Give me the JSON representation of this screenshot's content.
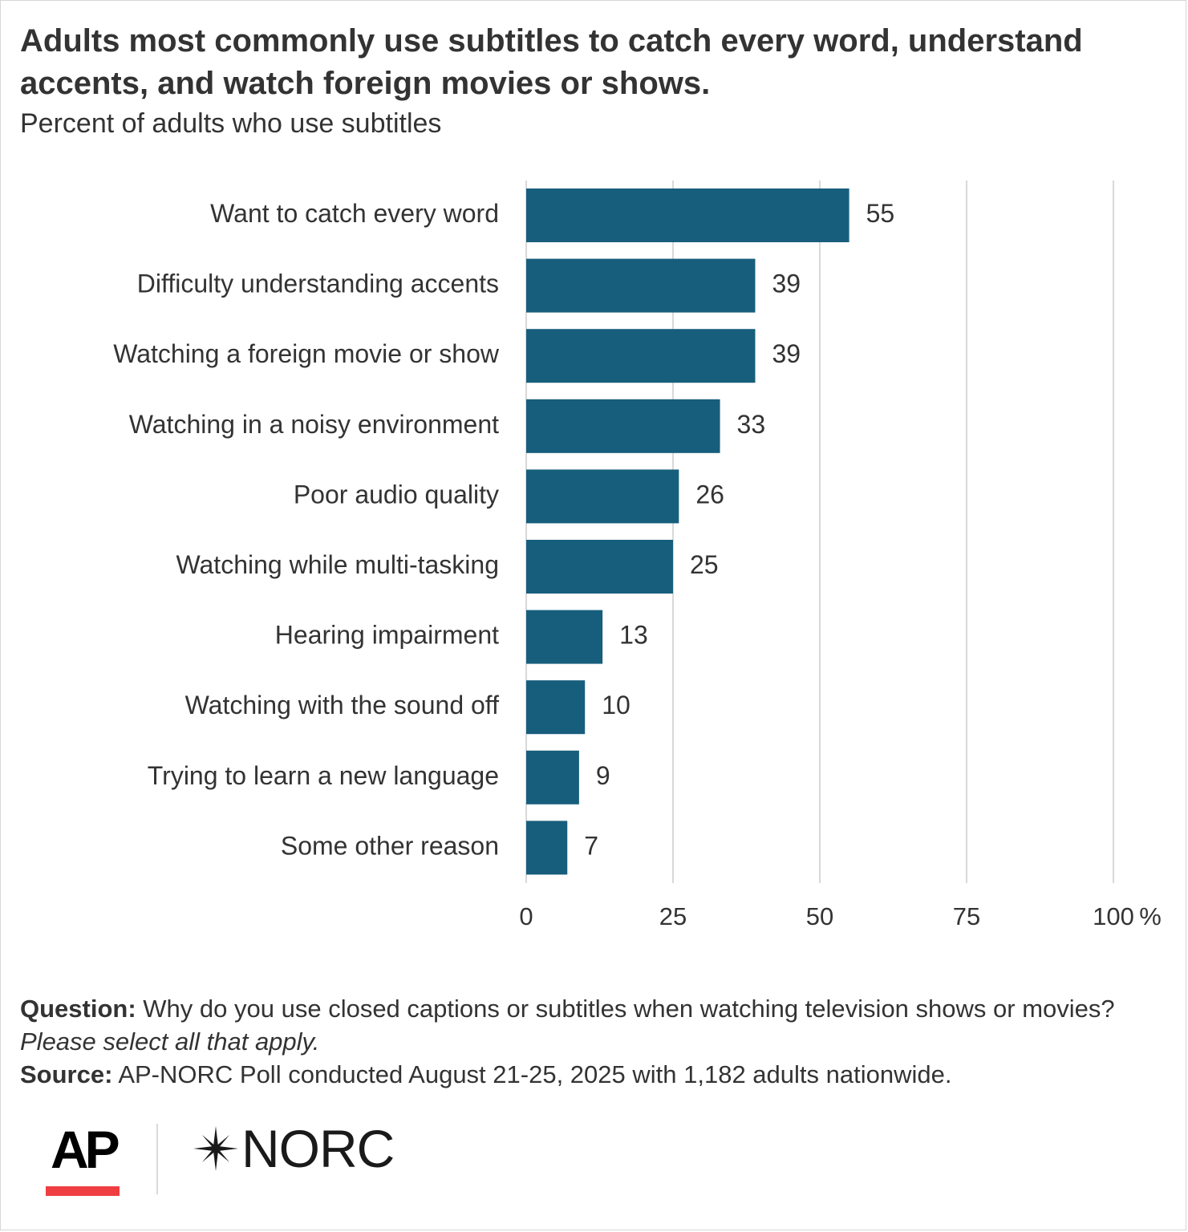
{
  "title": "Adults most commonly use subtitles to catch every word, understand accents, and watch foreign movies or shows.",
  "subtitle": "Percent of adults who use subtitles",
  "colors": {
    "bar": "#175e7c",
    "gridline": "#d9d9d9",
    "text": "#333333",
    "ap_red": "#ef3e42"
  },
  "chart_data": {
    "type": "bar",
    "orientation": "horizontal",
    "categories": [
      "Want to catch every word",
      "Difficulty understanding accents",
      "Watching a foreign movie or show",
      "Watching in a noisy environment",
      "Poor audio quality",
      "Watching while multi-tasking",
      "Hearing impairment",
      "Watching with the sound off",
      "Trying to learn a new language",
      "Some other reason"
    ],
    "values": [
      55,
      39,
      39,
      33,
      26,
      25,
      13,
      10,
      9,
      7
    ],
    "data_labels": [
      "55",
      "39",
      "39",
      "33",
      "26",
      "25",
      "13",
      "10",
      "9",
      "7"
    ],
    "xlim": [
      0,
      100
    ],
    "x_ticks": [
      0,
      25,
      50,
      75,
      100
    ],
    "x_tick_labels": [
      "0",
      "25",
      "50",
      "75",
      "100"
    ],
    "x_unit": "%",
    "grid": true,
    "legend": "none"
  },
  "footnote": {
    "question_label": "Question:",
    "question_text": "Why do you use closed captions or subtitles when watching television shows or movies?",
    "question_note": "Please select all that apply.",
    "source_label": "Source:",
    "source_text": "AP-NORC Poll conducted August 21-25, 2025 with 1,182 adults nationwide."
  },
  "logos": {
    "ap": "AP",
    "norc": "NORC",
    "norc_icon": "star-icon"
  }
}
